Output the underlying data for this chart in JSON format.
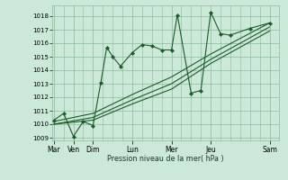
{
  "background_color": "#cce8d8",
  "grid_color": "#88bb99",
  "line_color": "#1a5c28",
  "marker_color": "#1a5c28",
  "title": "Pression niveau de la mer( hPa )",
  "ylim": [
    1008.8,
    1018.8
  ],
  "yticks": [
    1009,
    1010,
    1011,
    1012,
    1013,
    1014,
    1015,
    1016,
    1017,
    1018
  ],
  "major_xtick_positions": [
    0,
    1,
    2,
    4,
    6,
    8,
    11
  ],
  "major_xtick_labels": [
    "Mar",
    "Ven",
    "Dim",
    "Lun",
    "Mer",
    "Jeu",
    "Sam"
  ],
  "xlim": [
    -0.1,
    11.3
  ],
  "series1_x": [
    0,
    0.5,
    1,
    1.5,
    2,
    2.4,
    2.7,
    3.0,
    3.4,
    4.0,
    4.5,
    5.0,
    5.5,
    6.0,
    6.3,
    7.0,
    7.5,
    8.0,
    8.5,
    9.0,
    10.0,
    11.0
  ],
  "series1_y": [
    1010.3,
    1010.8,
    1009.1,
    1010.2,
    1009.9,
    1013.1,
    1015.7,
    1015.0,
    1014.3,
    1015.3,
    1015.9,
    1015.8,
    1015.5,
    1015.5,
    1018.1,
    1012.3,
    1012.5,
    1018.3,
    1016.7,
    1016.6,
    1017.1,
    1017.5
  ],
  "series2_x": [
    0,
    2,
    4,
    6,
    8,
    11
  ],
  "series2_y": [
    1010.2,
    1010.8,
    1012.2,
    1013.5,
    1015.2,
    1017.5
  ],
  "series3_x": [
    0,
    2,
    4,
    6,
    8,
    11
  ],
  "series3_y": [
    1010.0,
    1010.5,
    1011.8,
    1013.0,
    1014.8,
    1017.2
  ],
  "series4_x": [
    0,
    2,
    4,
    6,
    8,
    11
  ],
  "series4_y": [
    1010.0,
    1010.3,
    1011.5,
    1012.6,
    1014.5,
    1016.9
  ]
}
